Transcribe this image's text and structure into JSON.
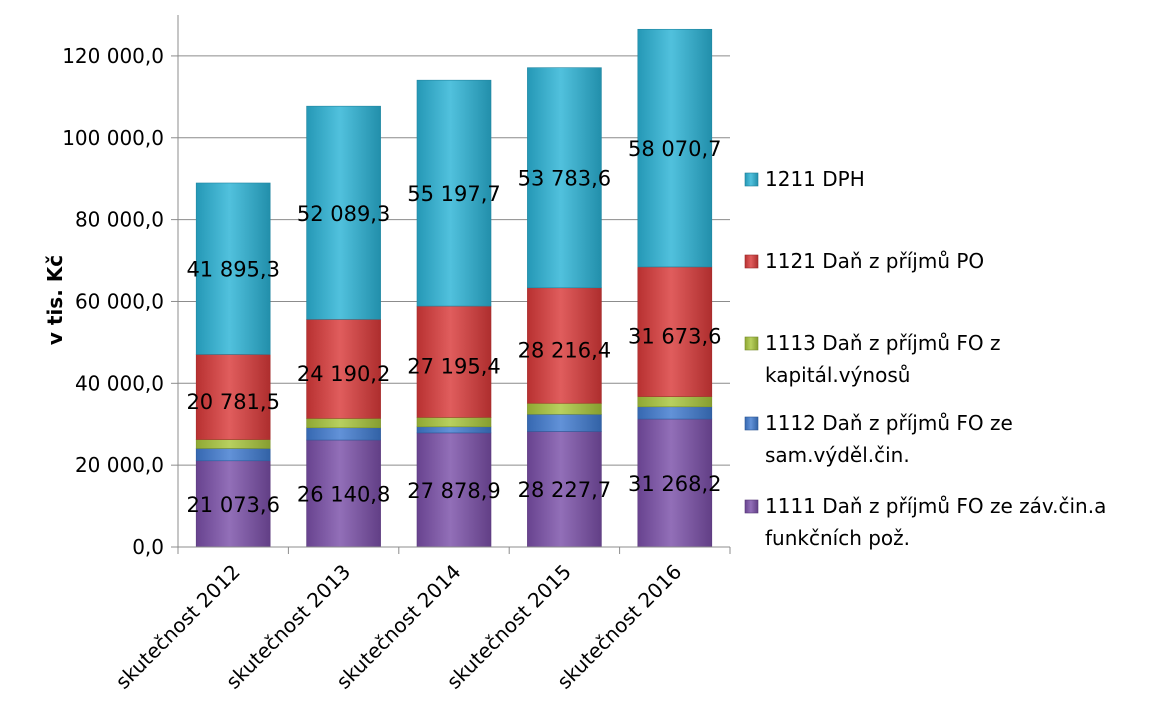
{
  "chart_data": {
    "type": "bar",
    "stacked": true,
    "categories": [
      "skutečnost 2012",
      "skutečnost 2013",
      "skutečnost 2014",
      "skutečnost 2015",
      "skutečnost 2016"
    ],
    "series": [
      {
        "name": "1111 Daň z příjmů FO ze záv.čin.a funkčních pož.",
        "legend_lines": [
          "1111 Daň z příjmů FO ze záv.čin.a",
          "funkčních pož."
        ],
        "color": "#7a4fa8",
        "values": [
          21073.6,
          26140.8,
          27878.9,
          28227.7,
          31268.2
        ],
        "labels": [
          "21 073,6",
          "26 140,8",
          "27 878,9",
          "28 227,7",
          "31 268,2"
        ],
        "show_labels": true
      },
      {
        "name": "1112 Daň z příjmů FO ze sam.výděl.čin.",
        "legend_lines": [
          "1112 Daň z příjmů FO ze",
          "sam.výděl.čin."
        ],
        "color": "#3f7ad0",
        "values": [
          3000,
          3000,
          1500,
          4200,
          3000
        ],
        "show_labels": false
      },
      {
        "name": "1113 Daň z příjmů FO z kapitál.výnosů",
        "legend_lines": [
          "1113 Daň z příjmů FO z",
          "kapitál.výnosů"
        ],
        "color": "#a8c63c",
        "values": [
          2200,
          2300,
          2300,
          2700,
          2500
        ],
        "show_labels": false
      },
      {
        "name": "1121 Daň z příjmů PO",
        "legend_lines": [
          "1121 Daň z příjmů PO"
        ],
        "color": "#d93a3a",
        "values": [
          20781.5,
          24190.2,
          27195.4,
          28216.4,
          31673.6
        ],
        "labels": [
          "20 781,5",
          "24 190,2",
          "27 195,4",
          "28 216,4",
          "31 673,6"
        ],
        "show_labels": true
      },
      {
        "name": "1211 DPH",
        "legend_lines": [
          "1211 DPH"
        ],
        "color": "#2bb3d6",
        "values": [
          41895.3,
          52089.3,
          55197.7,
          53783.6,
          58070.7
        ],
        "labels": [
          "41 895,3",
          "52 089,3",
          "55 197,7",
          "53 783,6",
          "58 070,7"
        ],
        "show_labels": true
      }
    ],
    "ylabel": "v tis. Kč",
    "xlabel": "",
    "ylim": [
      0,
      130000
    ],
    "yticks": [
      0,
      20000,
      40000,
      60000,
      80000,
      100000,
      120000
    ],
    "ytick_labels": [
      "0,0",
      "20 000,0",
      "40 000,0",
      "60 000,0",
      "80 000,0",
      "100 000,0",
      "120 000,0"
    ],
    "grid": true,
    "legend_position": "right"
  }
}
